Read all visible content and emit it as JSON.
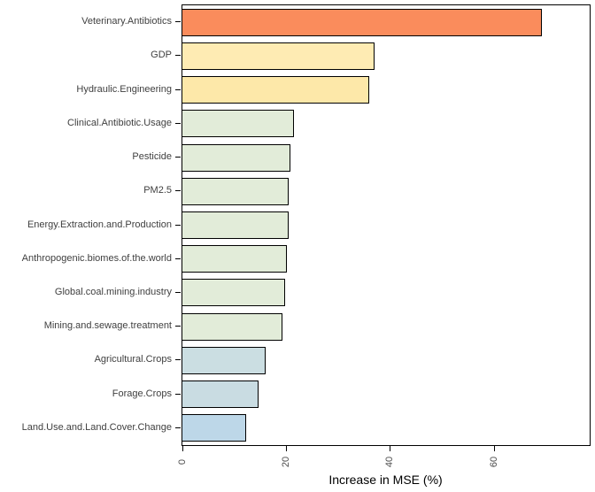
{
  "chart_data": {
    "type": "bar",
    "orientation": "horizontal",
    "title": "",
    "xlabel": "Increase in MSE (%)",
    "ylabel": "",
    "xlim": [
      0,
      78.4
    ],
    "x_ticks": [
      0,
      20,
      40,
      60
    ],
    "grid": false,
    "legend": false,
    "categories": [
      "Veterinary.Antibiotics",
      "GDP",
      "Hydraulic.Engineering",
      "Clinical.Antibiotic.Usage",
      "Pesticide",
      "PM2.5",
      "Energy.Extraction.and.Production",
      "Anthropogenic.biomes.of.the.world",
      "Global.coal.mining.industry",
      "Mining.and.sewage.treatment",
      "Agricultural.Crops",
      "Forage.Crops",
      "Land.Use.and.Land.Cover.Change"
    ],
    "values": [
      69.2,
      36.9,
      35.9,
      21.5,
      20.8,
      20.5,
      20.4,
      20.1,
      19.8,
      19.3,
      16.0,
      14.7,
      12.2
    ],
    "bar_colors": [
      "#FA8C5C",
      "#FEEBB3",
      "#FDE8A9",
      "#E2ECD9",
      "#E2ECD9",
      "#E2ECD9",
      "#E2ECD9",
      "#E2ECD9",
      "#E2ECD9",
      "#E2ECD9",
      "#CBDEE2",
      "#C9DCE2",
      "#BDD7E8"
    ],
    "bar_border_color": "#000000",
    "panel_border_color": "#000000",
    "axis_text_color": "#4d4d4d",
    "category_label_color": "#404040"
  }
}
